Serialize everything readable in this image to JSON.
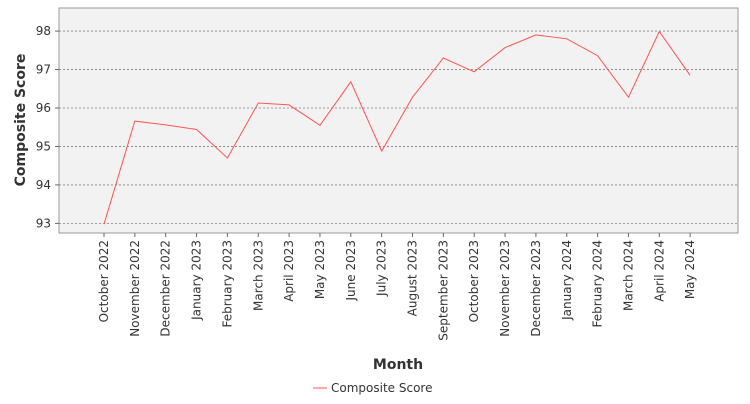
{
  "chart_data": {
    "type": "line",
    "xlabel": "Month",
    "ylabel": "Composite Score",
    "categories": [
      "October 2022",
      "November 2022",
      "December 2022",
      "January 2023",
      "February 2023",
      "March 2023",
      "April 2023",
      "May 2023",
      "June 2023",
      "July 2023",
      "August 2023",
      "September 2023",
      "October 2023",
      "November 2023",
      "December 2023",
      "January 2024",
      "February 2024",
      "March 2024",
      "April 2024",
      "May 2024"
    ],
    "series": [
      {
        "name": "Composite Score",
        "color": "#ff5555",
        "values": [
          92.98,
          95.66,
          95.56,
          95.44,
          94.7,
          96.13,
          96.08,
          95.55,
          96.68,
          94.88,
          96.28,
          97.3,
          96.94,
          97.57,
          97.9,
          97.8,
          97.36,
          96.28,
          97.99,
          96.85
        ]
      }
    ],
    "y_ticks": [
      93,
      94,
      95,
      96,
      97,
      98
    ],
    "ylim": [
      92.75,
      98.6
    ],
    "grid": true,
    "legend_position": "bottom",
    "plot_background": "#f2f2f2",
    "grid_color": "#808080"
  }
}
